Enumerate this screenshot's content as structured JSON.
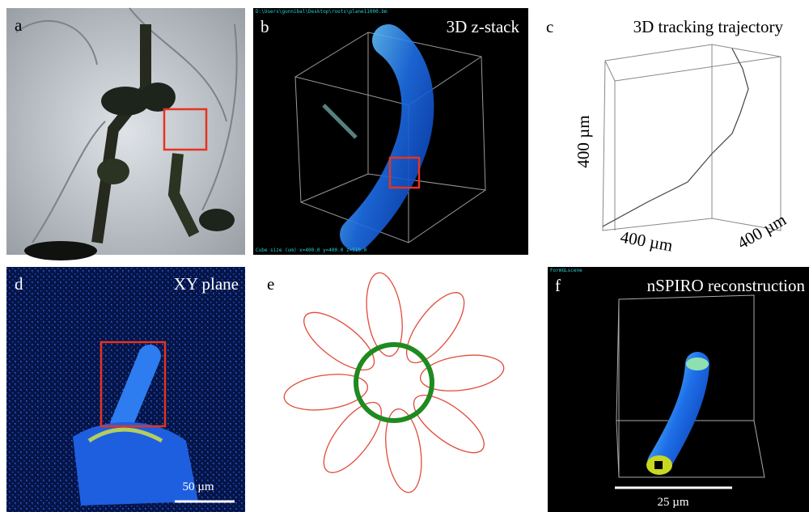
{
  "panels": [
    {
      "label": "a"
    },
    {
      "label": "b",
      "title": "3D z-stack",
      "path_text": "D:\\Users\\gunnibal\\Desktop\\roots\\plane11000.bm",
      "cube_text": "Cube size (um) x=400.0 y=400.0 z=510.0"
    },
    {
      "label": "c",
      "title": "3D tracking trajectory",
      "axis_labels": [
        "400 µm",
        "400 µm",
        "400 µm"
      ]
    },
    {
      "label": "d",
      "title": "XY plane",
      "scale_bar": "50 µm"
    },
    {
      "label": "e"
    },
    {
      "label": "f",
      "title": "nSPIRO reconstruction",
      "scale_bar": "25 µm",
      "window_text": "FormGLscene"
    }
  ]
}
